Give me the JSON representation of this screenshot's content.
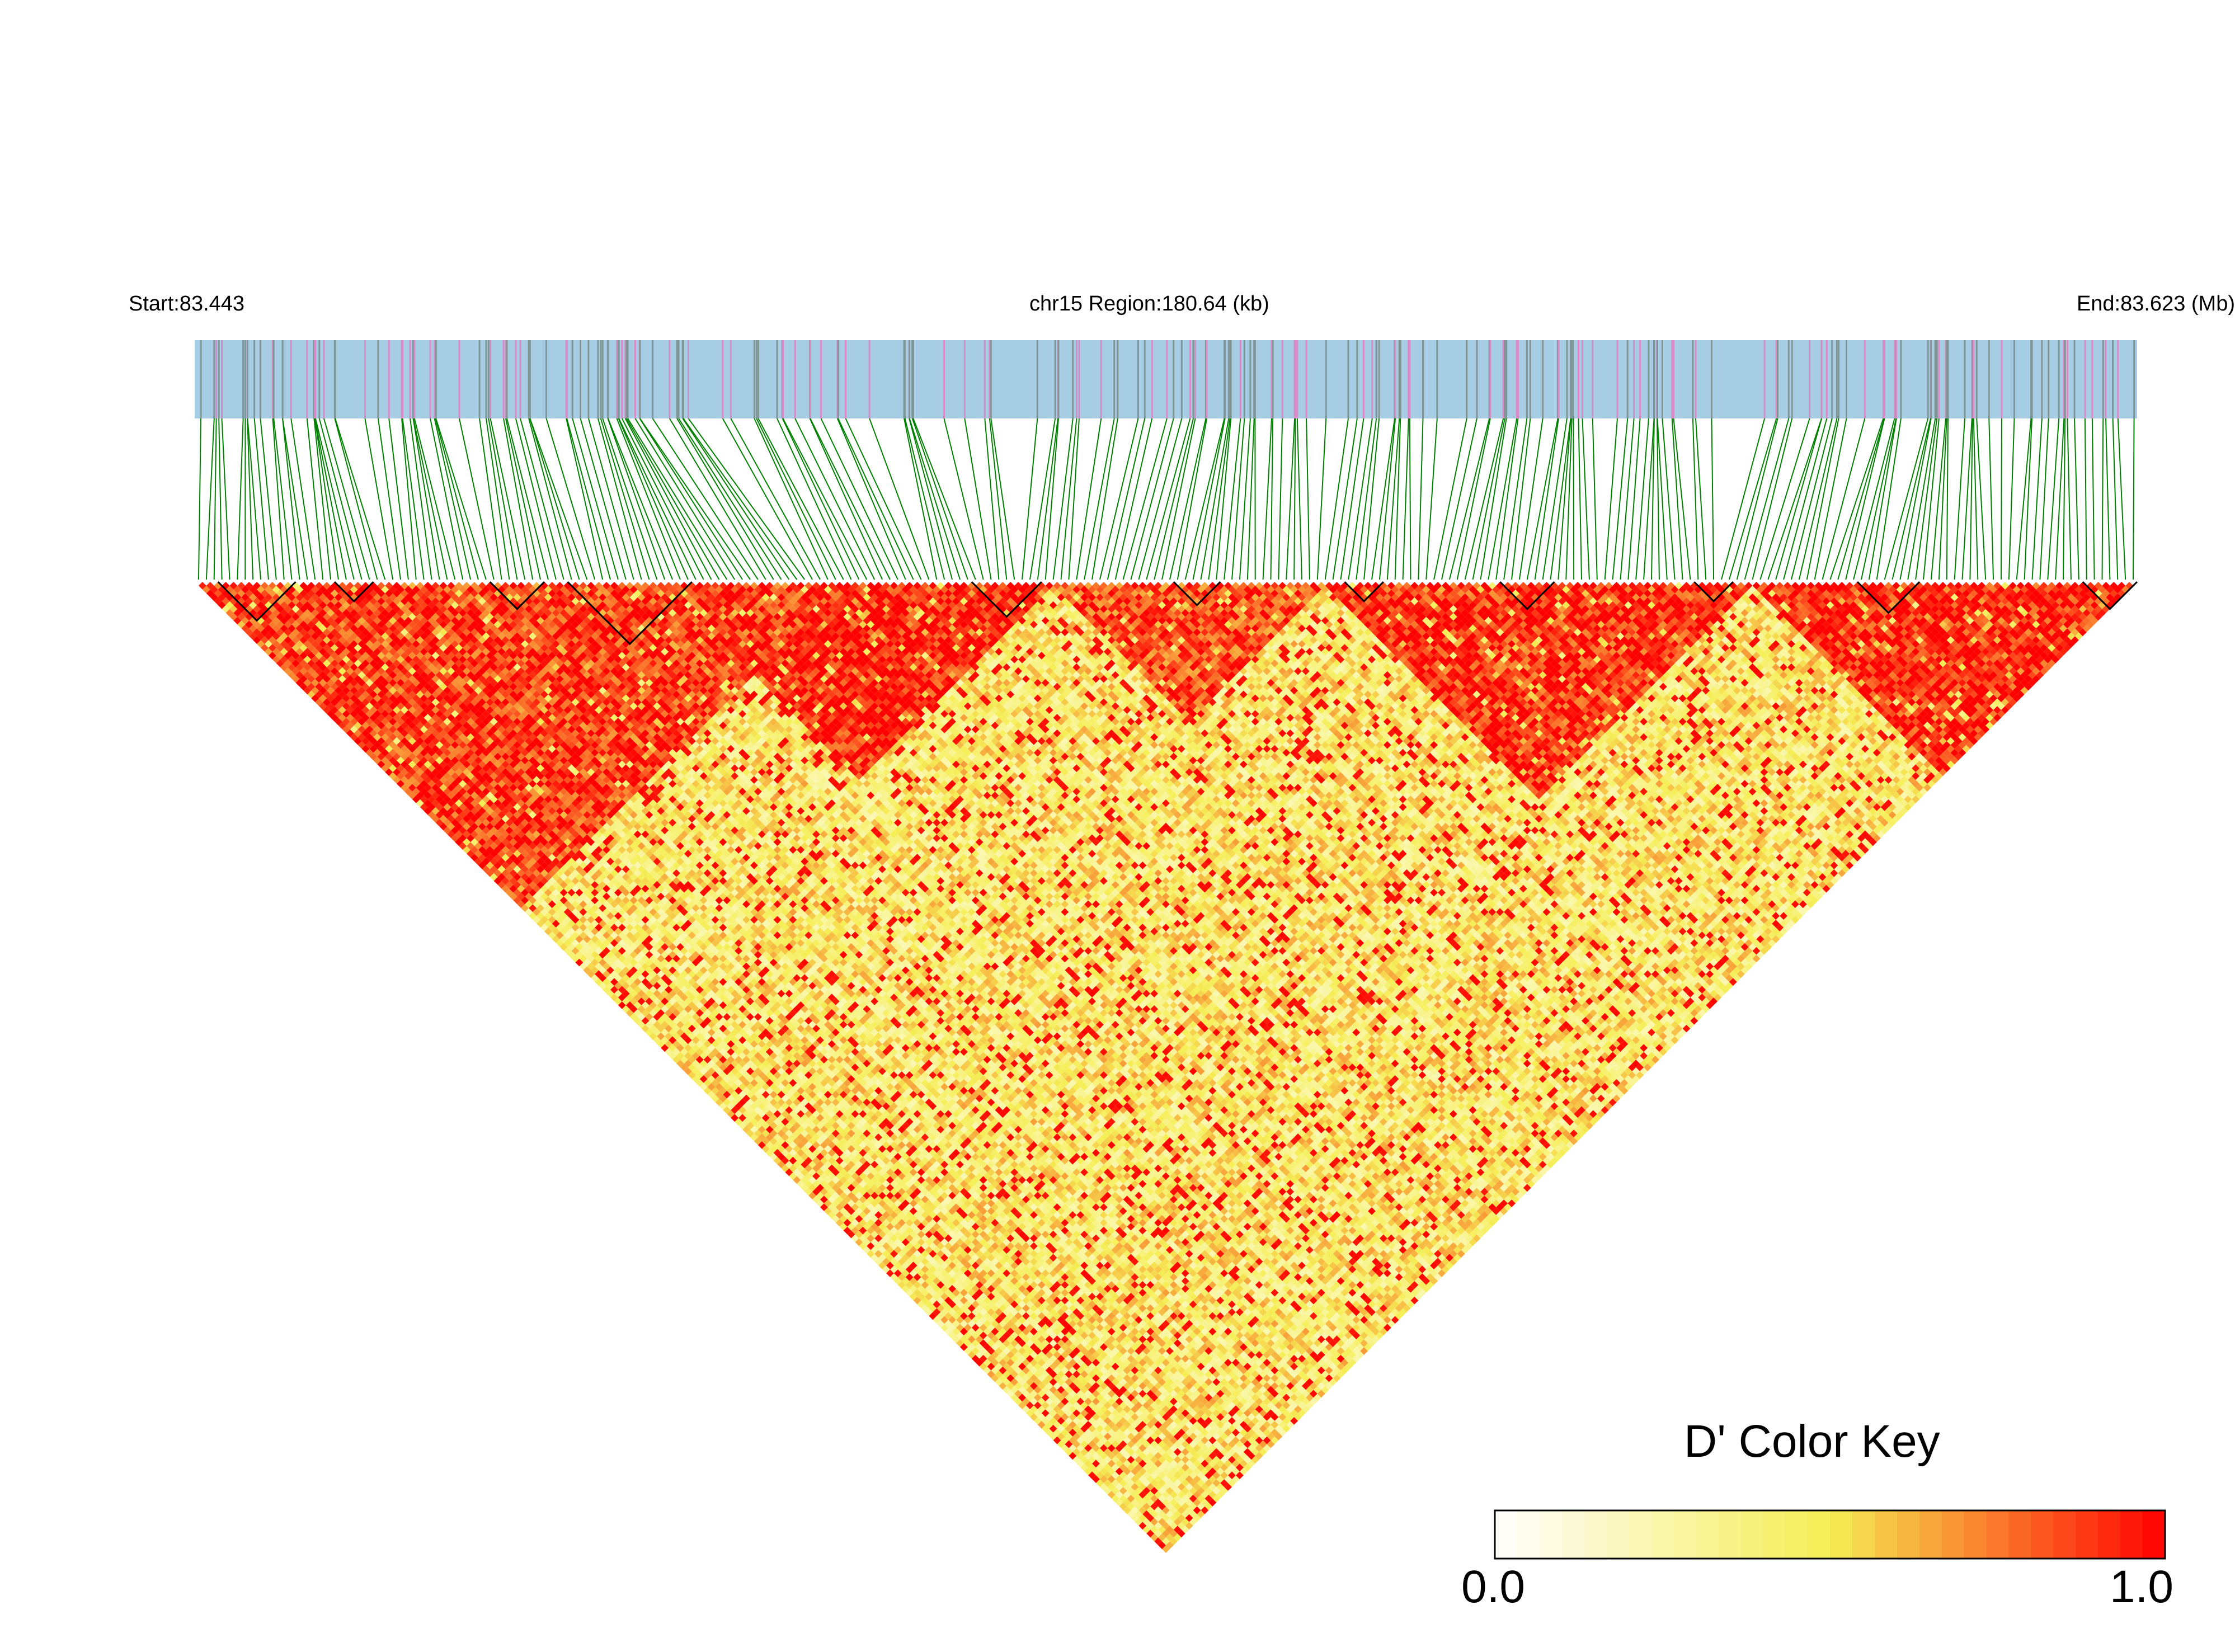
{
  "chart_data": {
    "type": "heatmap",
    "subtype": "linkage-disequilibrium triangle",
    "title": "chr15 Region:180.64 (kb)",
    "start_label": "Start:83.443",
    "end_label": "End:83.623 (Mb)",
    "region": {
      "chromosome": "chr15",
      "start_mb": 83.443,
      "end_mb": 83.623,
      "length_kb": 180.64
    },
    "statistic": "D'",
    "snp_count_approx": 250,
    "color_key": {
      "title": "D' Color Key",
      "min_label": "0.0",
      "max_label": "1.0",
      "range": [
        0,
        1
      ],
      "colors": [
        "#ffffff",
        "#f5ee55",
        "#ff0000"
      ]
    },
    "track_colors": {
      "band": "#a6cde3",
      "snp_marker_a": "#7f9596",
      "snp_marker_b": "#d98ac7",
      "connector": "#008000",
      "block_outline": "#000000"
    },
    "approx_ld_blocks": [
      {
        "snp_range": [
          0,
          83
        ],
        "mean_dprime": 0.9
      },
      {
        "snp_range": [
          60,
          110
        ],
        "mean_dprime": 0.95
      },
      {
        "snp_range": [
          110,
          145
        ],
        "mean_dprime": 0.85
      },
      {
        "snp_range": [
          145,
          200
        ],
        "mean_dprime": 0.92
      },
      {
        "snp_range": [
          200,
          250
        ],
        "mean_dprime": 0.95
      }
    ],
    "background_mean_dprime": 0.45
  }
}
